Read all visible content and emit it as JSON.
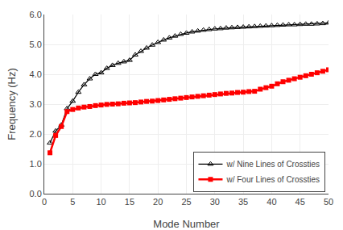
{
  "chart_data": {
    "type": "line",
    "xlabel": "Mode Number",
    "ylabel": "Frequency (Hz)",
    "x": [
      1,
      2,
      3,
      4,
      5,
      6,
      7,
      8,
      9,
      10,
      11,
      12,
      13,
      14,
      15,
      16,
      17,
      18,
      19,
      20,
      21,
      22,
      23,
      24,
      25,
      26,
      27,
      28,
      29,
      30,
      31,
      32,
      33,
      34,
      35,
      36,
      37,
      38,
      39,
      40,
      41,
      42,
      43,
      44,
      45,
      46,
      47,
      48,
      49,
      50
    ],
    "series": [
      {
        "name": "w/ Nine Lines of Crossties",
        "color": "#000000",
        "marker": "triangle-up-open",
        "values": [
          1.7,
          2.1,
          2.3,
          2.85,
          3.1,
          3.4,
          3.65,
          3.85,
          4.0,
          4.05,
          4.2,
          4.3,
          4.37,
          4.42,
          4.47,
          4.65,
          4.77,
          4.88,
          4.98,
          5.07,
          5.15,
          5.22,
          5.28,
          5.34,
          5.38,
          5.42,
          5.45,
          5.48,
          5.5,
          5.52,
          5.53,
          5.55,
          5.56,
          5.57,
          5.58,
          5.59,
          5.6,
          5.61,
          5.62,
          5.63,
          5.64,
          5.65,
          5.66,
          5.66,
          5.67,
          5.68,
          5.68,
          5.69,
          5.7,
          5.72
        ]
      },
      {
        "name": "w/ Four Lines of Crossties",
        "color": "#FF0000",
        "marker": "square",
        "values": [
          1.37,
          1.95,
          2.25,
          2.75,
          2.82,
          2.87,
          2.9,
          2.92,
          2.95,
          2.97,
          2.99,
          3.0,
          3.01,
          3.03,
          3.04,
          3.05,
          3.07,
          3.09,
          3.1,
          3.12,
          3.14,
          3.16,
          3.18,
          3.2,
          3.22,
          3.24,
          3.26,
          3.28,
          3.3,
          3.32,
          3.34,
          3.36,
          3.37,
          3.39,
          3.4,
          3.42,
          3.43,
          3.5,
          3.55,
          3.6,
          3.68,
          3.75,
          3.8,
          3.85,
          3.9,
          3.95,
          4.0,
          4.05,
          4.1,
          4.15
        ]
      }
    ],
    "xlim": [
      0,
      50
    ],
    "ylim": [
      0.0,
      6.0
    ],
    "xticks": [
      0,
      5,
      10,
      15,
      20,
      25,
      30,
      35,
      40,
      45,
      50
    ],
    "yticks": [
      {
        "value": 0,
        "label": "0.0"
      },
      {
        "value": 1,
        "label": "1.0"
      },
      {
        "value": 2,
        "label": "2.0"
      },
      {
        "value": 3,
        "label": "3.0"
      },
      {
        "value": 4,
        "label": "4.0"
      },
      {
        "value": 5,
        "label": "5.0"
      },
      {
        "value": 6,
        "label": "6.0"
      }
    ],
    "grid": true,
    "legend": "lower right"
  }
}
